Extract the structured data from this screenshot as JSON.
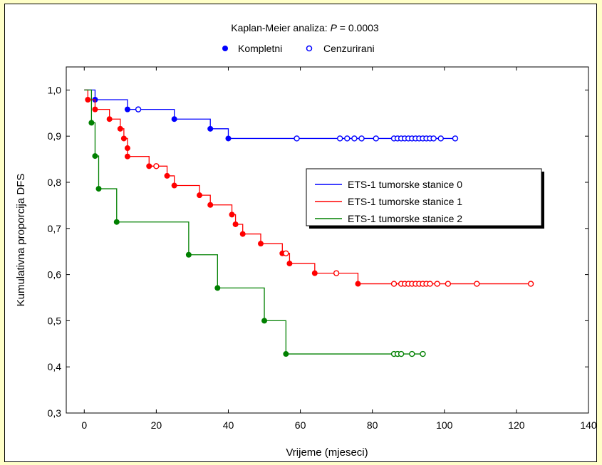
{
  "chart_data": {
    "type": "line",
    "title_prefix": "Kaplan-Meier analiza: ",
    "title_p": "P",
    "title_suffix": " = 0.0003",
    "marker_legend": {
      "complete": "Kompletni",
      "censored": "Cenzurirani"
    },
    "xlabel": "Vrijeme (mjeseci)",
    "ylabel": "Kumulativna proporcija DFS",
    "xlim": [
      -5,
      140
    ],
    "ylim": [
      0.3,
      1.05
    ],
    "x_ticks": [
      0,
      20,
      40,
      60,
      80,
      100,
      120,
      140
    ],
    "x_tick_labels": [
      "0",
      "20",
      "40",
      "60",
      "80",
      "100",
      "120",
      "140"
    ],
    "y_ticks": [
      0.3,
      0.4,
      0.5,
      0.6,
      0.7,
      0.8,
      0.9,
      1.0
    ],
    "y_tick_labels": [
      "0,3",
      "0,4",
      "0,5",
      "0,6",
      "0,7",
      "0,8",
      "0,9",
      "1,0"
    ],
    "grid": false,
    "legend_position": "right-middle",
    "series": [
      {
        "name": "ETS-1 tumorske stanice 0",
        "color": "#0000ff",
        "steps": [
          [
            0,
            1.0
          ],
          [
            3,
            0.979
          ],
          [
            12,
            0.958
          ],
          [
            25,
            0.937
          ],
          [
            35,
            0.916
          ],
          [
            40,
            0.895
          ],
          [
            103,
            0.895
          ]
        ],
        "complete": [
          [
            3,
            0.979
          ],
          [
            12,
            0.958
          ],
          [
            25,
            0.937
          ],
          [
            35,
            0.916
          ],
          [
            40,
            0.895
          ]
        ],
        "censored": [
          [
            15,
            0.958
          ],
          [
            59,
            0.895
          ],
          [
            71,
            0.895
          ],
          [
            73,
            0.895
          ],
          [
            75,
            0.895
          ],
          [
            77,
            0.895
          ],
          [
            81,
            0.895
          ],
          [
            86,
            0.895
          ],
          [
            87,
            0.895
          ],
          [
            88,
            0.895
          ],
          [
            89,
            0.895
          ],
          [
            90,
            0.895
          ],
          [
            91,
            0.895
          ],
          [
            92,
            0.895
          ],
          [
            93,
            0.895
          ],
          [
            94,
            0.895
          ],
          [
            95,
            0.895
          ],
          [
            96,
            0.895
          ],
          [
            97,
            0.895
          ],
          [
            99,
            0.895
          ],
          [
            103,
            0.895
          ]
        ]
      },
      {
        "name": "ETS-1 tumorske stanice 1",
        "color": "#ff0000",
        "steps": [
          [
            0,
            1.0
          ],
          [
            1,
            0.979
          ],
          [
            3,
            0.958
          ],
          [
            7,
            0.937
          ],
          [
            10,
            0.916
          ],
          [
            11,
            0.895
          ],
          [
            12,
            0.874
          ],
          [
            12,
            0.856
          ],
          [
            18,
            0.835
          ],
          [
            23,
            0.814
          ],
          [
            25,
            0.793
          ],
          [
            32,
            0.772
          ],
          [
            35,
            0.751
          ],
          [
            41,
            0.73
          ],
          [
            42,
            0.709
          ],
          [
            44,
            0.688
          ],
          [
            49,
            0.667
          ],
          [
            55,
            0.646
          ],
          [
            57,
            0.624
          ],
          [
            64,
            0.603
          ],
          [
            76,
            0.58
          ],
          [
            124,
            0.58
          ]
        ],
        "complete": [
          [
            1,
            0.979
          ],
          [
            3,
            0.958
          ],
          [
            7,
            0.937
          ],
          [
            10,
            0.916
          ],
          [
            11,
            0.895
          ],
          [
            12,
            0.874
          ],
          [
            12,
            0.856
          ],
          [
            18,
            0.835
          ],
          [
            23,
            0.814
          ],
          [
            25,
            0.793
          ],
          [
            32,
            0.772
          ],
          [
            35,
            0.751
          ],
          [
            41,
            0.73
          ],
          [
            42,
            0.709
          ],
          [
            44,
            0.688
          ],
          [
            49,
            0.667
          ],
          [
            55,
            0.646
          ],
          [
            57,
            0.624
          ],
          [
            64,
            0.603
          ],
          [
            76,
            0.58
          ]
        ],
        "censored": [
          [
            20,
            0.835
          ],
          [
            56,
            0.646
          ],
          [
            70,
            0.603
          ],
          [
            86,
            0.58
          ],
          [
            88,
            0.58
          ],
          [
            89,
            0.58
          ],
          [
            90,
            0.58
          ],
          [
            91,
            0.58
          ],
          [
            92,
            0.58
          ],
          [
            93,
            0.58
          ],
          [
            94,
            0.58
          ],
          [
            95,
            0.58
          ],
          [
            96,
            0.58
          ],
          [
            98,
            0.58
          ],
          [
            101,
            0.58
          ],
          [
            109,
            0.58
          ],
          [
            124,
            0.58
          ]
        ]
      },
      {
        "name": "ETS-1 tumorske stanice 2",
        "color": "#008000",
        "steps": [
          [
            0,
            1.0
          ],
          [
            2,
            0.929
          ],
          [
            3,
            0.857
          ],
          [
            4,
            0.786
          ],
          [
            9,
            0.714
          ],
          [
            29,
            0.643
          ],
          [
            37,
            0.571
          ],
          [
            50,
            0.5
          ],
          [
            56,
            0.428
          ],
          [
            94,
            0.428
          ]
        ],
        "complete": [
          [
            2,
            0.929
          ],
          [
            3,
            0.857
          ],
          [
            4,
            0.786
          ],
          [
            9,
            0.714
          ],
          [
            29,
            0.643
          ],
          [
            37,
            0.571
          ],
          [
            50,
            0.5
          ],
          [
            56,
            0.428
          ]
        ],
        "censored": [
          [
            86,
            0.428
          ],
          [
            87,
            0.428
          ],
          [
            88,
            0.428
          ],
          [
            91,
            0.428
          ],
          [
            94,
            0.428
          ]
        ]
      }
    ]
  }
}
